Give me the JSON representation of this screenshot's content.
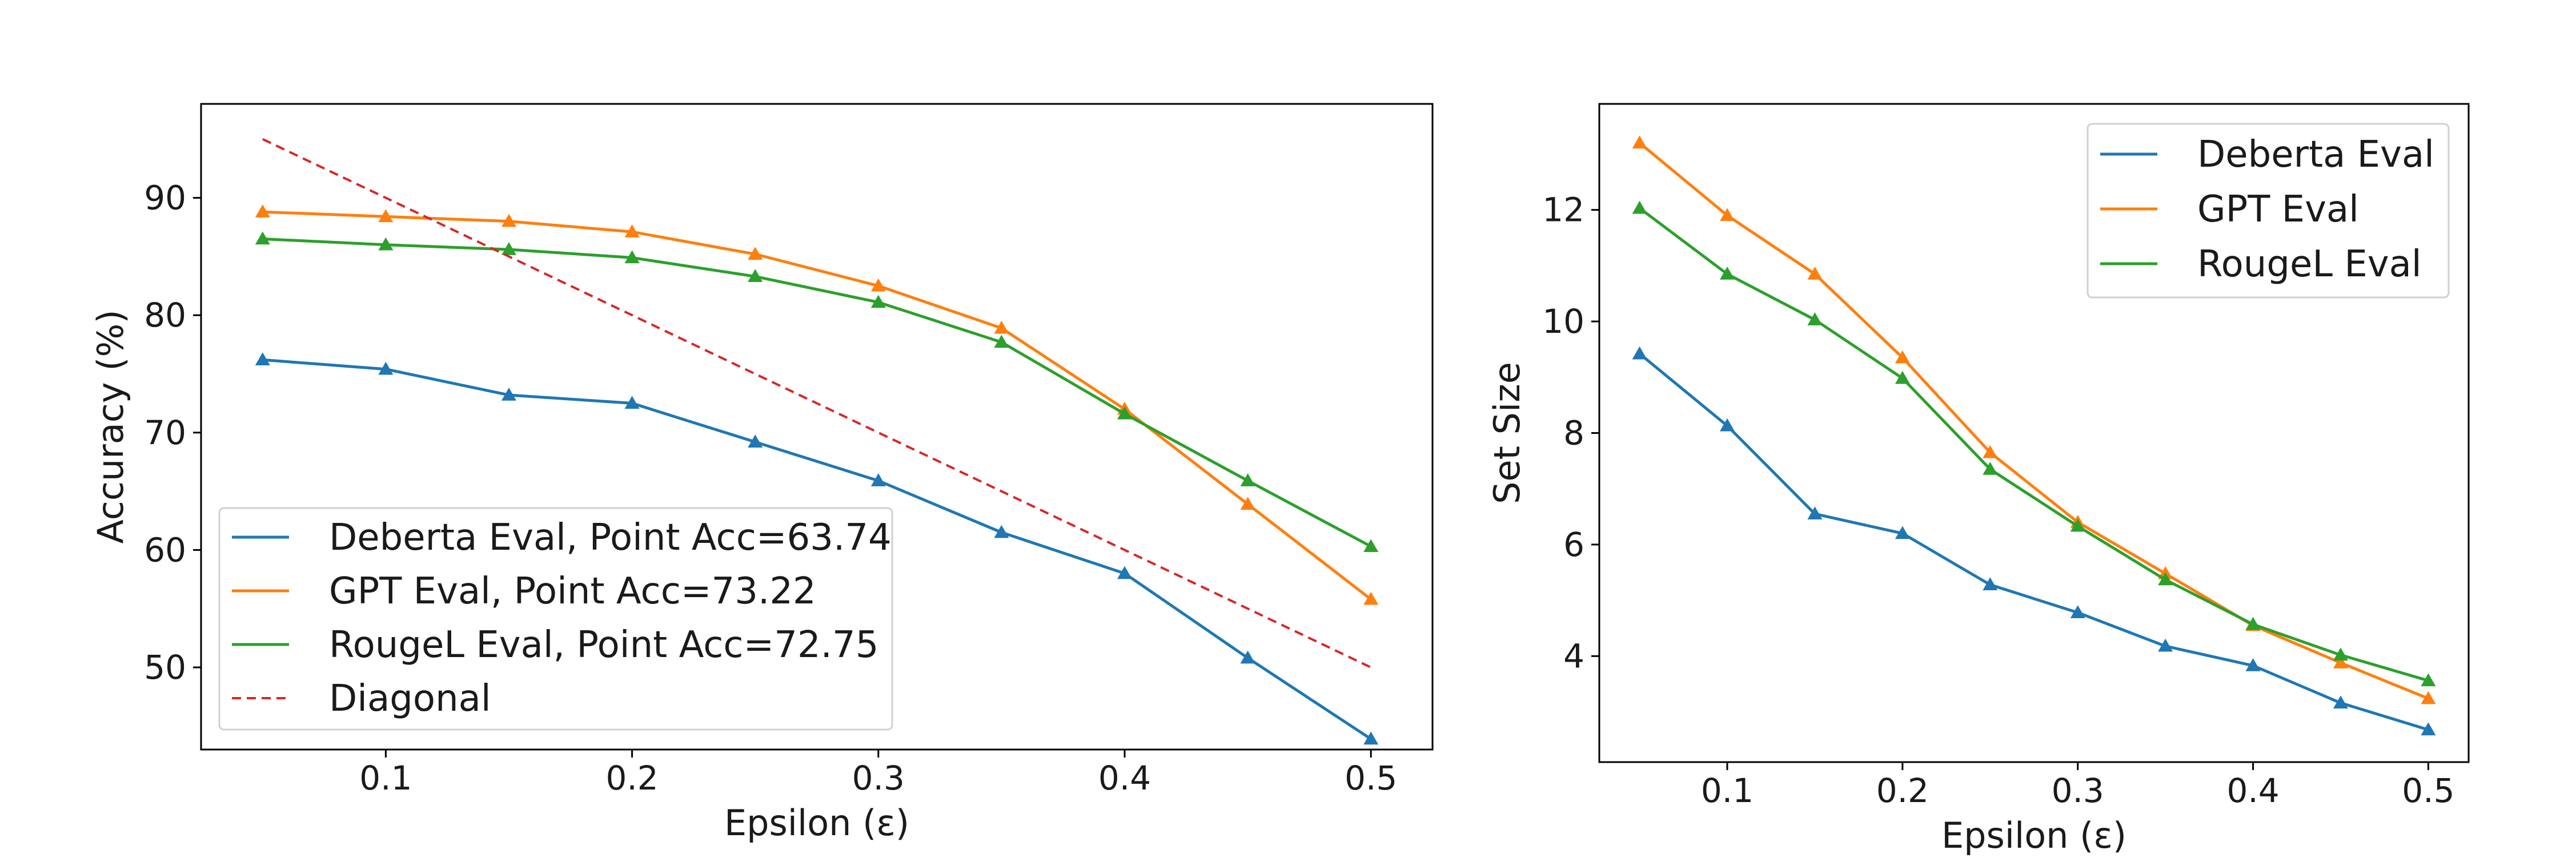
{
  "colors": {
    "deberta": "#1f77b4",
    "gpt": "#ff7f0e",
    "rougel": "#2ca02c",
    "diagonal": "#d62728"
  },
  "chart_data": [
    {
      "type": "line",
      "xlabel": "Epsilon (ε)",
      "ylabel": "Accuracy (%)",
      "xlim": [
        0.025,
        0.525
      ],
      "ylim": [
        43,
        98
      ],
      "xticks": [
        "0.1",
        "0.2",
        "0.3",
        "0.4",
        "0.5"
      ],
      "yticks": [
        "50",
        "60",
        "70",
        "80",
        "90"
      ],
      "x": [
        0.05,
        0.1,
        0.15,
        0.2,
        0.25,
        0.3,
        0.35,
        0.4,
        0.45,
        0.5
      ],
      "legend_position": "lower-left",
      "series": [
        {
          "name": "Deberta Eval, Point Acc=63.74",
          "color": "#1f77b4",
          "marker": "triangle",
          "style": "solid",
          "values": [
            76.2,
            75.4,
            73.2,
            72.5,
            69.2,
            65.9,
            61.5,
            58.0,
            50.8,
            43.9
          ]
        },
        {
          "name": "GPT Eval, Point Acc=73.22",
          "color": "#ff7f0e",
          "marker": "triangle",
          "style": "solid",
          "values": [
            88.8,
            88.4,
            88.0,
            87.1,
            85.2,
            82.5,
            78.9,
            72.0,
            63.9,
            55.8
          ]
        },
        {
          "name": "RougeL Eval, Point Acc=72.75",
          "color": "#2ca02c",
          "marker": "triangle",
          "style": "solid",
          "values": [
            86.5,
            86.0,
            85.6,
            84.9,
            83.3,
            81.1,
            77.7,
            71.6,
            65.9,
            60.3
          ]
        },
        {
          "name": "Diagonal",
          "color": "#d62728",
          "marker": "none",
          "style": "dashed",
          "values": [
            95,
            90,
            85,
            80,
            75,
            70,
            65,
            60,
            55,
            50
          ]
        }
      ]
    },
    {
      "type": "line",
      "xlabel": "Epsilon (ε)",
      "ylabel": "Set Size",
      "xlim": [
        0.027,
        0.523
      ],
      "ylim": [
        2.1,
        13.9
      ],
      "xticks": [
        "0.1",
        "0.2",
        "0.3",
        "0.4",
        "0.5"
      ],
      "yticks": [
        "4",
        "6",
        "8",
        "10",
        "12"
      ],
      "x": [
        0.05,
        0.1,
        0.15,
        0.2,
        0.25,
        0.3,
        0.35,
        0.4,
        0.45,
        0.5
      ],
      "legend_position": "upper-right",
      "series": [
        {
          "name": "Deberta Eval",
          "color": "#1f77b4",
          "marker": "triangle",
          "style": "solid",
          "values": [
            9.42,
            8.13,
            6.55,
            6.2,
            5.28,
            4.78,
            4.18,
            3.83,
            3.16,
            2.68
          ]
        },
        {
          "name": "GPT Eval",
          "color": "#ff7f0e",
          "marker": "triangle",
          "style": "solid",
          "values": [
            13.2,
            11.9,
            10.85,
            9.35,
            7.65,
            6.4,
            5.48,
            4.55,
            3.88,
            3.24
          ]
        },
        {
          "name": "RougeL Eval",
          "color": "#2ca02c",
          "marker": "triangle",
          "style": "solid",
          "values": [
            12.03,
            10.85,
            10.03,
            8.98,
            7.35,
            6.33,
            5.37,
            4.57,
            4.02,
            3.56
          ]
        }
      ]
    }
  ]
}
